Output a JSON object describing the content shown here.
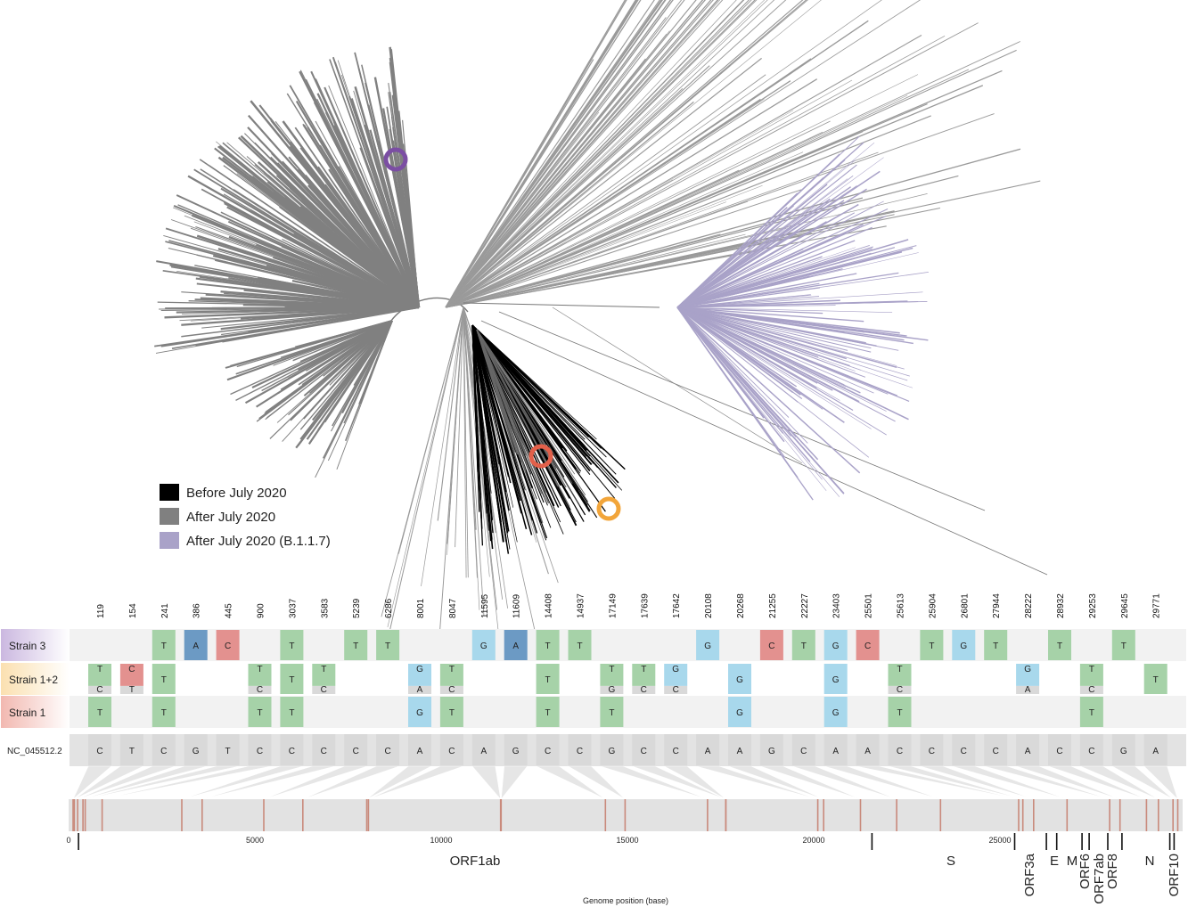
{
  "legend": {
    "items": [
      {
        "label": "Before July 2020",
        "color": "#000000"
      },
      {
        "label": "After July 2020",
        "color": "#808080"
      },
      {
        "label": "After July 2020 (B.1.1.7)",
        "color": "#a9a2c8"
      }
    ]
  },
  "markers": [
    {
      "color": "#7b4ea3"
    },
    {
      "color": "#e2604a"
    },
    {
      "color": "#f2a53a"
    }
  ],
  "alignment": {
    "positions": [
      119,
      154,
      241,
      386,
      445,
      900,
      3037,
      3583,
      5239,
      6286,
      8001,
      8047,
      11595,
      11609,
      14408,
      14937,
      17149,
      17639,
      17642,
      20108,
      20268,
      21255,
      22227,
      23403,
      25501,
      25613,
      25904,
      26801,
      27944,
      28222,
      28932,
      29253,
      29645,
      29771
    ],
    "reference_label": "NC_045512.2",
    "reference": [
      "C",
      "T",
      "C",
      "G",
      "T",
      "C",
      "C",
      "C",
      "C",
      "C",
      "A",
      "C",
      "A",
      "G",
      "C",
      "C",
      "G",
      "C",
      "C",
      "A",
      "A",
      "G",
      "C",
      "A",
      "A",
      "C",
      "C",
      "C",
      "C",
      "A",
      "C",
      "C",
      "G",
      "A"
    ],
    "rows": [
      {
        "label": "Strain 3",
        "label_color": "#cbb8e0",
        "cells": [
          {
            "i": 2,
            "base": "T"
          },
          {
            "i": 3,
            "base": "A"
          },
          {
            "i": 4,
            "base": "C"
          },
          {
            "i": 6,
            "base": "T"
          },
          {
            "i": 8,
            "base": "T"
          },
          {
            "i": 9,
            "base": "T"
          },
          {
            "i": 12,
            "base": "G"
          },
          {
            "i": 13,
            "base": "A"
          },
          {
            "i": 14,
            "base": "T"
          },
          {
            "i": 15,
            "base": "T"
          },
          {
            "i": 19,
            "base": "G"
          },
          {
            "i": 21,
            "base": "C"
          },
          {
            "i": 22,
            "base": "T"
          },
          {
            "i": 23,
            "base": "G"
          },
          {
            "i": 24,
            "base": "C"
          },
          {
            "i": 26,
            "base": "T"
          },
          {
            "i": 27,
            "base": "G"
          },
          {
            "i": 28,
            "base": "T"
          },
          {
            "i": 30,
            "base": "T"
          },
          {
            "i": 32,
            "base": "T"
          }
        ]
      },
      {
        "label": "Strain 1+2",
        "label_color": "#fbe0b0",
        "cells": [
          {
            "i": 0,
            "top": "T",
            "bottom": "C"
          },
          {
            "i": 1,
            "top": "C",
            "bottom": "T"
          },
          {
            "i": 2,
            "base": "T"
          },
          {
            "i": 5,
            "top": "T",
            "bottom": "C"
          },
          {
            "i": 6,
            "base": "T"
          },
          {
            "i": 7,
            "top": "T",
            "bottom": "C"
          },
          {
            "i": 10,
            "top": "G",
            "bottom": "A"
          },
          {
            "i": 11,
            "top": "T",
            "bottom": "C"
          },
          {
            "i": 14,
            "base": "T"
          },
          {
            "i": 16,
            "top": "T",
            "bottom": "G"
          },
          {
            "i": 17,
            "top": "T",
            "bottom": "C"
          },
          {
            "i": 18,
            "top": "G",
            "bottom": "C"
          },
          {
            "i": 20,
            "base": "G"
          },
          {
            "i": 23,
            "base": "G"
          },
          {
            "i": 25,
            "top": "T",
            "bottom": "C"
          },
          {
            "i": 29,
            "top": "G",
            "bottom": "A"
          },
          {
            "i": 31,
            "top": "T",
            "bottom": "C"
          },
          {
            "i": 33,
            "base": "T"
          }
        ]
      },
      {
        "label": "Strain 1",
        "label_color": "#f2b8b0",
        "cells": [
          {
            "i": 0,
            "base": "T"
          },
          {
            "i": 2,
            "base": "T"
          },
          {
            "i": 5,
            "base": "T"
          },
          {
            "i": 6,
            "base": "T"
          },
          {
            "i": 10,
            "base": "G"
          },
          {
            "i": 11,
            "base": "T"
          },
          {
            "i": 14,
            "base": "T"
          },
          {
            "i": 16,
            "base": "T"
          },
          {
            "i": 20,
            "base": "G"
          },
          {
            "i": 23,
            "base": "G"
          },
          {
            "i": 25,
            "base": "T"
          },
          {
            "i": 31,
            "base": "T"
          }
        ]
      }
    ],
    "base_colors": {
      "T": "#a6d2a8",
      "A": "#6c9ac4",
      "C": "#e3918f",
      "G": "#a8d8ec"
    },
    "ref_base_color": "#d9d9d9"
  },
  "genome": {
    "length": 29903,
    "axis_title": "Genome position (base)",
    "ticks": [
      {
        "value": 0,
        "label": "0"
      },
      {
        "value": 5000,
        "label": "5000"
      },
      {
        "value": 10000,
        "label": "10000"
      },
      {
        "value": 15000,
        "label": "15000"
      },
      {
        "value": 20000,
        "label": "20000"
      },
      {
        "value": 25000,
        "label": "25000"
      }
    ],
    "genes": [
      {
        "name": "ORF1ab",
        "start": 266,
        "end": 21555,
        "rotated": false
      },
      {
        "name": "S",
        "start": 21563,
        "end": 25384,
        "rotated": false
      },
      {
        "name": "ORF3a",
        "start": 25393,
        "end": 26220,
        "rotated": true
      },
      {
        "name": "E",
        "start": 26245,
        "end": 26472,
        "rotated": false
      },
      {
        "name": "M",
        "start": 26523,
        "end": 27191,
        "rotated": false
      },
      {
        "name": "ORF6",
        "start": 27202,
        "end": 27387,
        "rotated": true
      },
      {
        "name": "ORF7ab",
        "start": 27394,
        "end": 28259,
        "rotated": true
      },
      {
        "name": "ORF8",
        "start": 27894,
        "end": 28259,
        "rotated": true
      },
      {
        "name": "N",
        "start": 28274,
        "end": 29533,
        "rotated": false
      },
      {
        "name": "ORF10",
        "start": 29558,
        "end": 29674,
        "rotated": true
      }
    ],
    "track_color": "#e2e2e2",
    "mutation_line_color": "#c98a7c"
  }
}
